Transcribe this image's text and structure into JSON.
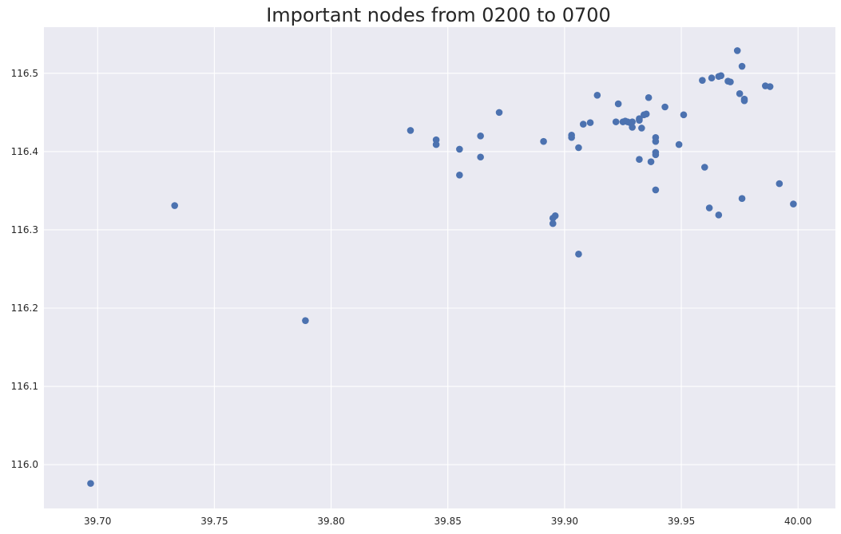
{
  "chart_data": {
    "type": "scatter",
    "title": "Important nodes from 0200 to 0700",
    "xlabel": "",
    "ylabel": "",
    "xlim": [
      39.677,
      40.016
    ],
    "ylim": [
      115.944,
      116.559
    ],
    "x_ticks": [
      "39.70",
      "39.75",
      "39.80",
      "39.85",
      "39.90",
      "39.95",
      "40.00"
    ],
    "y_ticks": [
      "116.0",
      "116.1",
      "116.2",
      "116.3",
      "116.4",
      "116.5"
    ],
    "grid": true,
    "colors": {
      "point": "#4c72b0",
      "background": "#eaeaf2",
      "grid": "#ffffff"
    },
    "series": [
      {
        "points": [
          [
            39.697,
            115.976
          ],
          [
            39.733,
            116.331
          ],
          [
            39.789,
            116.184
          ],
          [
            39.834,
            116.427
          ],
          [
            39.845,
            116.415
          ],
          [
            39.845,
            116.409
          ],
          [
            39.855,
            116.403
          ],
          [
            39.855,
            116.37
          ],
          [
            39.864,
            116.42
          ],
          [
            39.864,
            116.393
          ],
          [
            39.872,
            116.45
          ],
          [
            39.891,
            116.413
          ],
          [
            39.895,
            116.315
          ],
          [
            39.896,
            116.318
          ],
          [
            39.895,
            116.308
          ],
          [
            39.903,
            116.421
          ],
          [
            39.903,
            116.418
          ],
          [
            39.906,
            116.405
          ],
          [
            39.906,
            116.269
          ],
          [
            39.908,
            116.435
          ],
          [
            39.911,
            116.437
          ],
          [
            39.914,
            116.472
          ],
          [
            39.922,
            116.438
          ],
          [
            39.923,
            116.461
          ],
          [
            39.925,
            116.438
          ],
          [
            39.926,
            116.439
          ],
          [
            39.927,
            116.438
          ],
          [
            39.928,
            116.437
          ],
          [
            39.929,
            116.438
          ],
          [
            39.929,
            116.431
          ],
          [
            39.932,
            116.442
          ],
          [
            39.932,
            116.44
          ],
          [
            39.932,
            116.39
          ],
          [
            39.933,
            116.43
          ],
          [
            39.934,
            116.447
          ],
          [
            39.935,
            116.448
          ],
          [
            39.936,
            116.469
          ],
          [
            39.937,
            116.387
          ],
          [
            39.939,
            116.418
          ],
          [
            39.939,
            116.413
          ],
          [
            39.939,
            116.399
          ],
          [
            39.939,
            116.396
          ],
          [
            39.939,
            116.351
          ],
          [
            39.943,
            116.457
          ],
          [
            39.949,
            116.409
          ],
          [
            39.951,
            116.447
          ],
          [
            39.959,
            116.491
          ],
          [
            39.96,
            116.38
          ],
          [
            39.962,
            116.328
          ],
          [
            39.963,
            116.494
          ],
          [
            39.966,
            116.319
          ],
          [
            39.966,
            116.496
          ],
          [
            39.967,
            116.497
          ],
          [
            39.97,
            116.49
          ],
          [
            39.971,
            116.489
          ],
          [
            39.974,
            116.529
          ],
          [
            39.975,
            116.474
          ],
          [
            39.976,
            116.509
          ],
          [
            39.976,
            116.34
          ],
          [
            39.977,
            116.467
          ],
          [
            39.977,
            116.465
          ],
          [
            39.986,
            116.484
          ],
          [
            39.988,
            116.483
          ],
          [
            39.992,
            116.359
          ],
          [
            39.998,
            116.333
          ]
        ]
      }
    ]
  }
}
